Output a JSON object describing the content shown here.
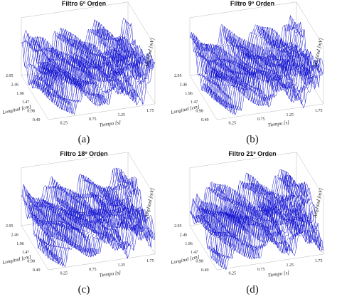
{
  "panels": [
    {
      "title": "Filtro 6º Orden",
      "caption": "(a)",
      "z_label": "Amplitud [mV]",
      "x_label": "Tiempo [s]",
      "y_label": "Longitud [cm]",
      "y_ticks": [
        "2.95",
        "2.46",
        "1.96",
        "1.47",
        "0.98",
        "0.49"
      ],
      "x_ticks": [
        "0.25",
        "0.75",
        "1.25",
        "1.75"
      ]
    },
    {
      "title": "Filtro 9º Orden",
      "caption": "(b)",
      "z_label": "Amplitud [mV]",
      "x_label": "Tiempo [s]",
      "y_label": "Longitud [cm]",
      "y_ticks": [
        "2.95",
        "2.46",
        "1.96",
        "1.47",
        "0.98",
        "0.49"
      ],
      "x_ticks": [
        "0.25",
        "0.75",
        "1.25",
        "1.75"
      ]
    },
    {
      "title": "Filtro 18º Orden",
      "caption": "(c)",
      "z_label": "Amplitud [mV]",
      "x_label": "Tiempo [s]",
      "y_label": "Longitud [cm]",
      "y_ticks": [
        "2.95",
        "2.46",
        "1.96",
        "1.47",
        "0.98",
        "0.49"
      ],
      "x_ticks": [
        "0.25",
        "0.75",
        "1.25",
        "1.75"
      ]
    },
    {
      "title": "Filtro 21º Orden",
      "caption": "(d)",
      "z_label": "Amplitud [mV]",
      "x_label": "Tiempo [s]",
      "y_label": "Longitud [cm]",
      "y_ticks": [
        "2.95",
        "2.46",
        "1.96",
        "1.47",
        "0.98",
        "0.49"
      ],
      "x_ticks": [
        "0.25",
        "0.75",
        "1.25",
        "1.75"
      ]
    }
  ]
}
